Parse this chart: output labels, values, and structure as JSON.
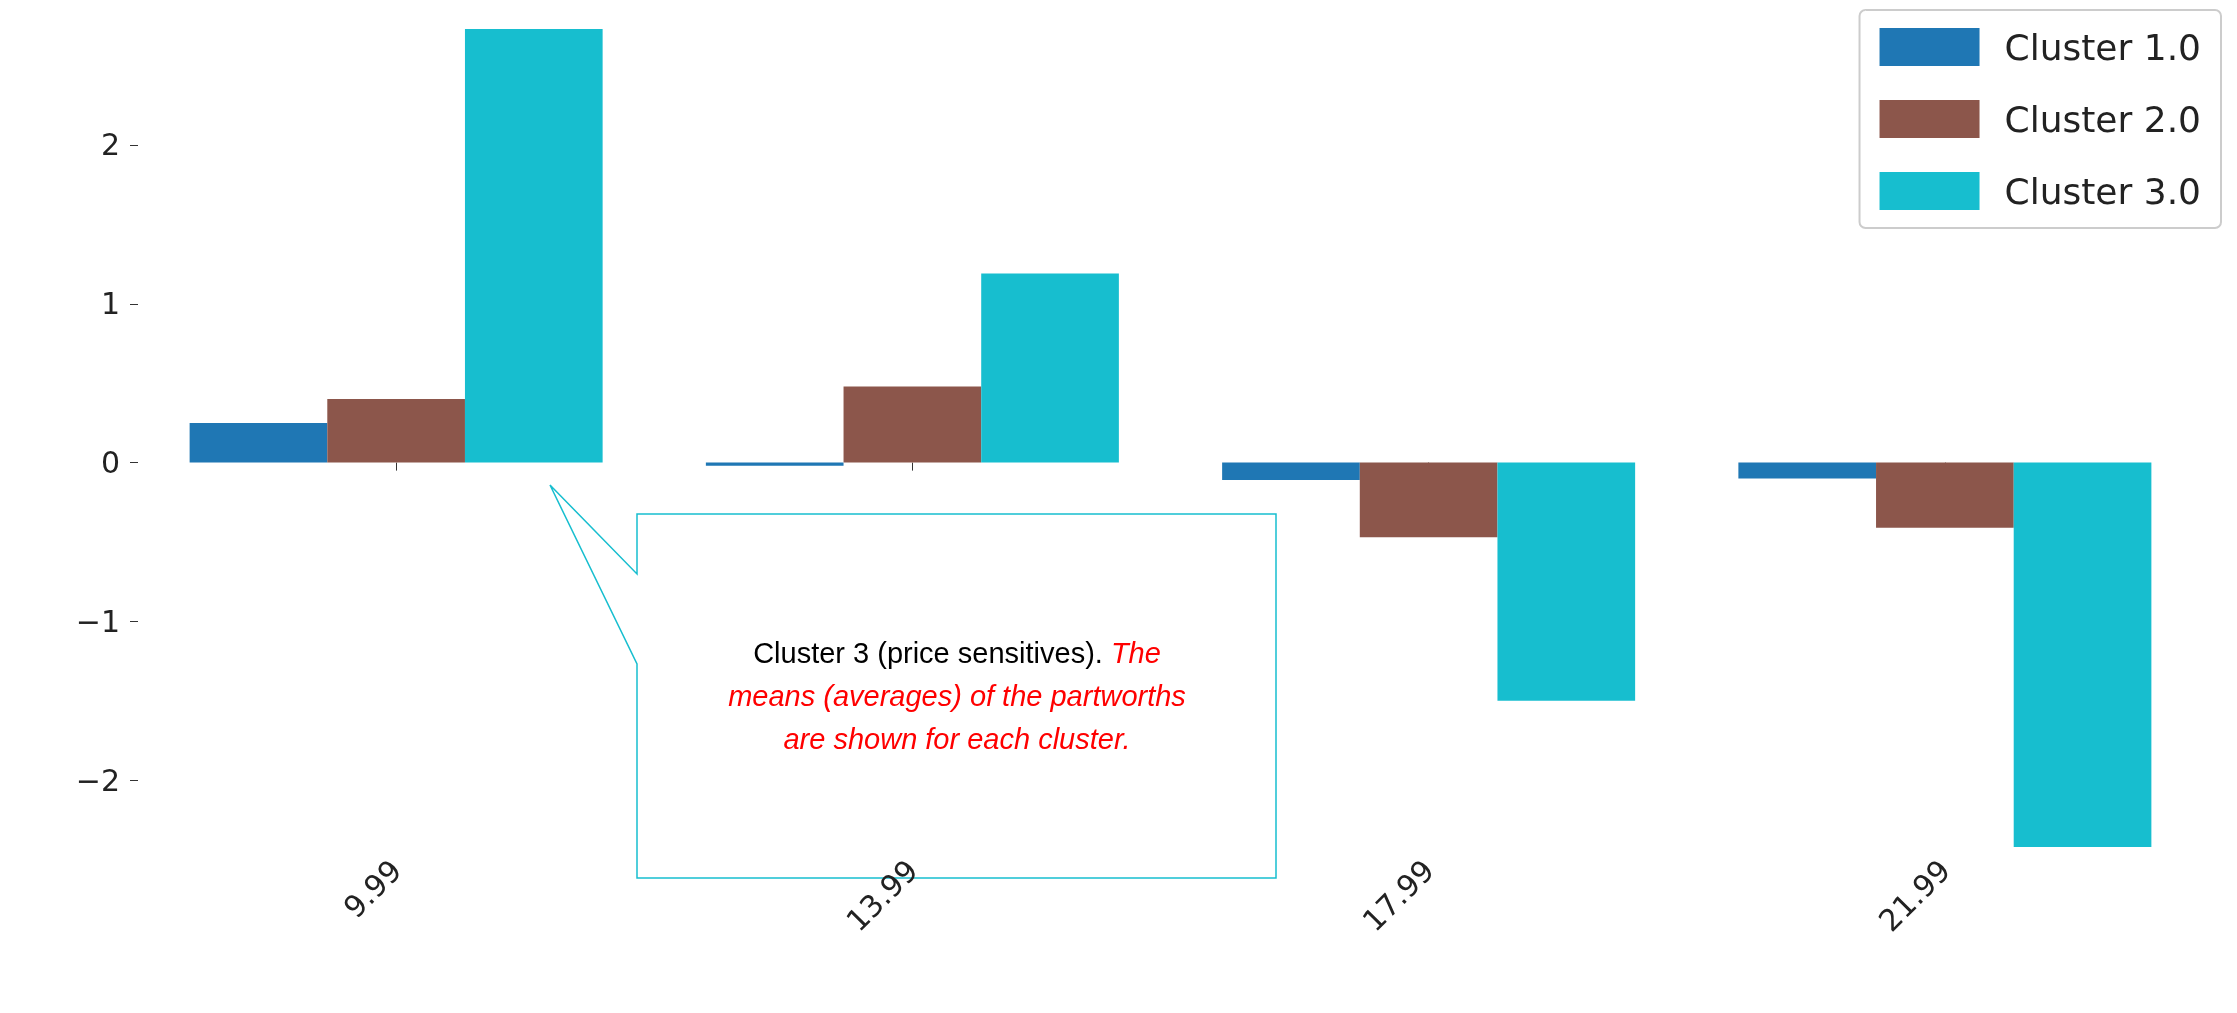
{
  "chart_data": {
    "type": "bar",
    "categories": [
      "9.99",
      "13.99",
      "17.99",
      "21.99"
    ],
    "series": [
      {
        "name": "Cluster 1.0",
        "color": "#1f77b4",
        "values": [
          0.25,
          -0.02,
          -0.11,
          -0.1
        ]
      },
      {
        "name": "Cluster 2.0",
        "color": "#8c564b",
        "values": [
          0.4,
          0.48,
          -0.47,
          -0.41
        ]
      },
      {
        "name": "Cluster 3.0",
        "color": "#17becf",
        "values": [
          2.73,
          1.19,
          -1.5,
          -2.42
        ]
      }
    ],
    "ylim": [
      -2.42,
      2.73
    ],
    "yticks": [
      -2,
      -1,
      0,
      1,
      2
    ],
    "grid": false,
    "legend": "top right",
    "annotations": [
      "Cluster 3 (price sensitives). ",
      "The means (averages) of the partworths are shown for each cluster."
    ]
  }
}
